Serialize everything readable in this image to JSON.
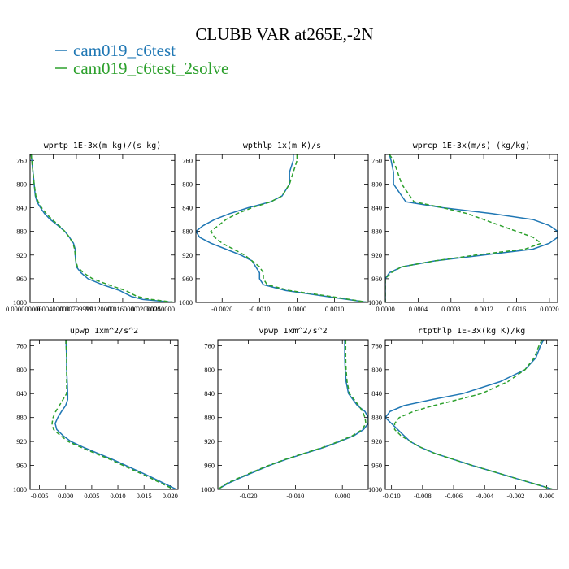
{
  "title": "CLUBB VAR at265E,-2N",
  "legend": [
    {
      "label": "cam019_c6test",
      "color": "#1f77b4",
      "dash": "solid"
    },
    {
      "label": "cam019_c6test_2solve",
      "color": "#2ca02c",
      "dash": "dashed"
    }
  ],
  "chart_data": [
    {
      "type": "line",
      "title": "wprtp  1E-3x(m kg)/(s kg)",
      "xlim": [
        0,
        0.025
      ],
      "ylim": [
        1000,
        750
      ],
      "yticks": [
        760,
        800,
        840,
        880,
        920,
        960,
        1000
      ],
      "xticks": [
        0,
        0.004,
        0.008,
        0.012,
        0.016,
        0.02,
        0.025
      ],
      "xtick_labels": [
        "0.000000000",
        "0.00400000",
        "0.00799999",
        "0.0120000",
        "0.0160000",
        "0.0200000",
        "0.0250000"
      ],
      "y": [
        750,
        760,
        780,
        800,
        820,
        830,
        840,
        850,
        860,
        870,
        880,
        890,
        900,
        910,
        920,
        930,
        940,
        950,
        960,
        970,
        980,
        990,
        995,
        1000
      ],
      "series": [
        {
          "name": "cam019_c6test",
          "color": "#1f77b4",
          "x": [
            0.0002,
            0.0003,
            0.0005,
            0.0007,
            0.0009,
            0.0012,
            0.0018,
            0.0025,
            0.0035,
            0.0048,
            0.006,
            0.0068,
            0.0075,
            0.0078,
            0.0078,
            0.0079,
            0.008,
            0.0088,
            0.01,
            0.0125,
            0.0155,
            0.0175,
            0.0195,
            0.025
          ]
        },
        {
          "name": "cam019_c6test_2solve",
          "color": "#2ca02c",
          "x": [
            0.0002,
            0.0003,
            0.0005,
            0.0007,
            0.001,
            0.0014,
            0.002,
            0.0028,
            0.0038,
            0.005,
            0.006,
            0.0068,
            0.0074,
            0.0077,
            0.0078,
            0.0079,
            0.0082,
            0.0092,
            0.0108,
            0.0135,
            0.0165,
            0.0185,
            0.021,
            0.025
          ]
        }
      ]
    },
    {
      "type": "line",
      "title": "wpthlp  1x(m K)/s",
      "xlim": [
        -0.0027,
        0.0019
      ],
      "ylim": [
        1000,
        750
      ],
      "yticks": [
        760,
        800,
        840,
        880,
        920,
        960,
        1000
      ],
      "xticks": [
        -0.002,
        -0.001,
        0,
        0.001
      ],
      "xtick_labels": [
        "-0.0020",
        "-0.0010",
        "0.0000",
        "0.0010"
      ],
      "y": [
        750,
        760,
        780,
        800,
        820,
        830,
        840,
        850,
        860,
        870,
        880,
        890,
        900,
        910,
        920,
        930,
        940,
        950,
        960,
        970,
        980,
        990,
        1000
      ],
      "series": [
        {
          "name": "cam019_c6test",
          "color": "#1f77b4",
          "x": [
            -0.0001,
            -0.0001,
            -0.0002,
            -0.0002,
            -0.0004,
            -0.0007,
            -0.0013,
            -0.0018,
            -0.0022,
            -0.0025,
            -0.0027,
            -0.0026,
            -0.0023,
            -0.0019,
            -0.0015,
            -0.0012,
            -0.0011,
            -0.001,
            -0.001,
            -0.0009,
            -0.0003,
            0.0008,
            0.0019
          ]
        },
        {
          "name": "cam019_c6test_2solve",
          "color": "#2ca02c",
          "x": [
            0.0,
            0.0,
            -0.0001,
            -0.0002,
            -0.0004,
            -0.0007,
            -0.0012,
            -0.0016,
            -0.0019,
            -0.0021,
            -0.0023,
            -0.0022,
            -0.002,
            -0.0017,
            -0.0014,
            -0.0012,
            -0.001,
            -0.0009,
            -0.0009,
            -0.0008,
            -0.0002,
            0.0009,
            0.0019
          ]
        }
      ]
    },
    {
      "type": "line",
      "title": "wprcp  1E-3x(m/s) (kg/kg)",
      "xlim": [
        0,
        0.0021
      ],
      "ylim": [
        1000,
        750
      ],
      "yticks": [
        760,
        800,
        840,
        880,
        920,
        960,
        1000
      ],
      "xticks": [
        0,
        0.0004,
        0.0008,
        0.0012,
        0.0016,
        0.002
      ],
      "xtick_labels": [
        "0.0000",
        "0.0004",
        "0.0008",
        "0.0012",
        "0.0016",
        "0.0020"
      ],
      "y": [
        750,
        760,
        780,
        800,
        810,
        820,
        830,
        840,
        850,
        860,
        870,
        880,
        890,
        900,
        910,
        920,
        930,
        940,
        950,
        960,
        965,
        970,
        980,
        1000
      ],
      "series": [
        {
          "name": "cam019_c6test",
          "color": "#1f77b4",
          "x": [
            5e-05,
            7e-05,
            0.0001,
            0.0001,
            0.00015,
            0.0002,
            0.00025,
            0.0007,
            0.0013,
            0.0018,
            0.002,
            0.0021,
            0.0021,
            0.002,
            0.0018,
            0.0012,
            0.0006,
            0.0002,
            5e-05,
            0.0,
            0.0,
            0.0,
            0.0,
            0.0
          ]
        },
        {
          "name": "cam019_c6test_2solve",
          "color": "#2ca02c",
          "x": [
            5e-05,
            0.0001,
            0.00015,
            0.0002,
            0.00025,
            0.0003,
            0.00035,
            0.0007,
            0.001,
            0.0012,
            0.0014,
            0.0016,
            0.0018,
            0.0019,
            0.0017,
            0.0011,
            0.0006,
            0.0002,
            7e-05,
            0.0,
            0.0,
            0.0,
            0.0,
            0.0
          ]
        }
      ]
    },
    {
      "type": "line",
      "title": "upwp  1xm^2/s^2",
      "xlim": [
        -0.0068,
        0.0215
      ],
      "ylim": [
        1000,
        750
      ],
      "yticks": [
        760,
        800,
        840,
        880,
        920,
        960,
        1000
      ],
      "xticks": [
        -0.005,
        0,
        0.005,
        0.01,
        0.015,
        0.02
      ],
      "xtick_labels": [
        "-0.005",
        "0.000",
        "0.005",
        "0.010",
        "0.015",
        "0.020"
      ],
      "y": [
        750,
        760,
        780,
        800,
        820,
        840,
        850,
        860,
        870,
        880,
        890,
        900,
        910,
        920,
        930,
        940,
        950,
        960,
        970,
        980,
        990,
        1000
      ],
      "series": [
        {
          "name": "cam019_c6test",
          "color": "#1f77b4",
          "x": [
            0.0001,
            0.0001,
            0.0002,
            0.0002,
            0.0003,
            0.0004,
            0.0004,
            0.0,
            -0.0008,
            -0.0015,
            -0.002,
            -0.0017,
            -0.0005,
            0.001,
            0.0035,
            0.0062,
            0.009,
            0.0115,
            0.014,
            0.0165,
            0.0188,
            0.0212
          ]
        },
        {
          "name": "cam019_c6test_2solve",
          "color": "#2ca02c",
          "x": [
            0.0001,
            0.0001,
            0.0002,
            0.0002,
            0.0002,
            0.0002,
            -0.0005,
            -0.0012,
            -0.0019,
            -0.0024,
            -0.0026,
            -0.0023,
            -0.001,
            0.0005,
            0.003,
            0.0057,
            0.0085,
            0.011,
            0.0135,
            0.016,
            0.0183,
            0.0207
          ]
        }
      ]
    },
    {
      "type": "line",
      "title": "vpwp  1xm^2/s^2",
      "xlim": [
        -0.0265,
        0.0055
      ],
      "ylim": [
        1000,
        750
      ],
      "yticks": [
        760,
        800,
        840,
        880,
        920,
        960,
        1000
      ],
      "xticks": [
        -0.02,
        -0.01,
        0
      ],
      "xtick_labels": [
        "-0.020",
        "-0.010",
        "0.000"
      ],
      "y": [
        750,
        760,
        780,
        800,
        820,
        840,
        860,
        870,
        880,
        890,
        900,
        910,
        920,
        930,
        940,
        950,
        960,
        970,
        980,
        990,
        1000
      ],
      "series": [
        {
          "name": "cam019_c6test",
          "color": "#1f77b4",
          "x": [
            0.0005,
            0.0005,
            0.0005,
            0.0006,
            0.0008,
            0.0013,
            0.0032,
            0.0048,
            0.0055,
            0.0055,
            0.0045,
            0.0025,
            -0.0005,
            -0.004,
            -0.008,
            -0.012,
            -0.0155,
            -0.0185,
            -0.0215,
            -0.0243,
            -0.0265
          ]
        },
        {
          "name": "cam019_c6test_2solve",
          "color": "#2ca02c",
          "x": [
            0.0007,
            0.0007,
            0.0007,
            0.0008,
            0.001,
            0.0015,
            0.0035,
            0.0043,
            0.0048,
            0.005,
            0.0042,
            0.0022,
            -0.0008,
            -0.0042,
            -0.0082,
            -0.0122,
            -0.0157,
            -0.0188,
            -0.0218,
            -0.0246,
            -0.0265
          ]
        }
      ]
    },
    {
      "type": "line",
      "title": "rtpthlp  1E-3x(kg K)/kg",
      "xlim": [
        -0.0104,
        0.0007
      ],
      "ylim": [
        1000,
        750
      ],
      "yticks": [
        760,
        800,
        840,
        880,
        920,
        960,
        1000
      ],
      "xticks": [
        -0.01,
        -0.008,
        -0.006,
        -0.004,
        -0.002,
        0
      ],
      "xtick_labels": [
        "-0.010",
        "-0.008",
        "-0.006",
        "-0.004",
        "-0.002",
        "0.000"
      ],
      "y": [
        750,
        760,
        780,
        800,
        820,
        840,
        850,
        860,
        870,
        880,
        890,
        900,
        910,
        920,
        930,
        940,
        950,
        960,
        970,
        980,
        990,
        1000
      ],
      "series": [
        {
          "name": "cam019_c6test",
          "color": "#1f77b4",
          "x": [
            -0.0002,
            -0.0004,
            -0.0007,
            -0.0014,
            -0.003,
            -0.0054,
            -0.0074,
            -0.0092,
            -0.0101,
            -0.0104,
            -0.01,
            -0.0096,
            -0.0092,
            -0.0088,
            -0.0081,
            -0.0072,
            -0.006,
            -0.0048,
            -0.0035,
            -0.0022,
            -0.0009,
            0.0004
          ]
        },
        {
          "name": "cam019_c6test_2solve",
          "color": "#2ca02c",
          "x": [
            -0.0003,
            -0.0005,
            -0.0008,
            -0.0014,
            -0.0025,
            -0.0042,
            -0.0057,
            -0.0073,
            -0.0086,
            -0.0095,
            -0.0098,
            -0.0098,
            -0.0094,
            -0.0088,
            -0.0081,
            -0.0072,
            -0.006,
            -0.0048,
            -0.0035,
            -0.0022,
            -0.0009,
            0.0004
          ]
        }
      ]
    }
  ]
}
